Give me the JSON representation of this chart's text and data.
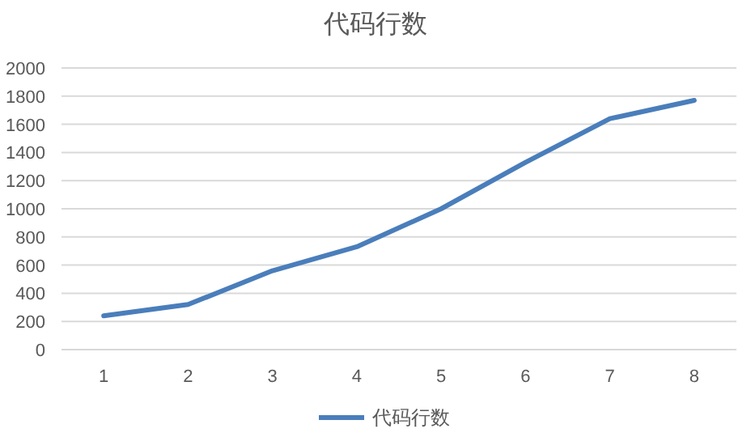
{
  "chart_data": {
    "type": "line",
    "title": "代码行数",
    "categories": [
      "1",
      "2",
      "3",
      "4",
      "5",
      "6",
      "7",
      "8"
    ],
    "series": [
      {
        "name": "代码行数",
        "color": "#4a7ebb",
        "values": [
          240,
          320,
          560,
          730,
          1000,
          1330,
          1640,
          1770
        ]
      }
    ],
    "ylim": [
      0,
      2000
    ],
    "yticks": [
      0,
      200,
      400,
      600,
      800,
      1000,
      1200,
      1400,
      1600,
      1800,
      2000
    ],
    "grid": "y",
    "legend": "bottom",
    "marker": "none",
    "line_style": "solid"
  }
}
